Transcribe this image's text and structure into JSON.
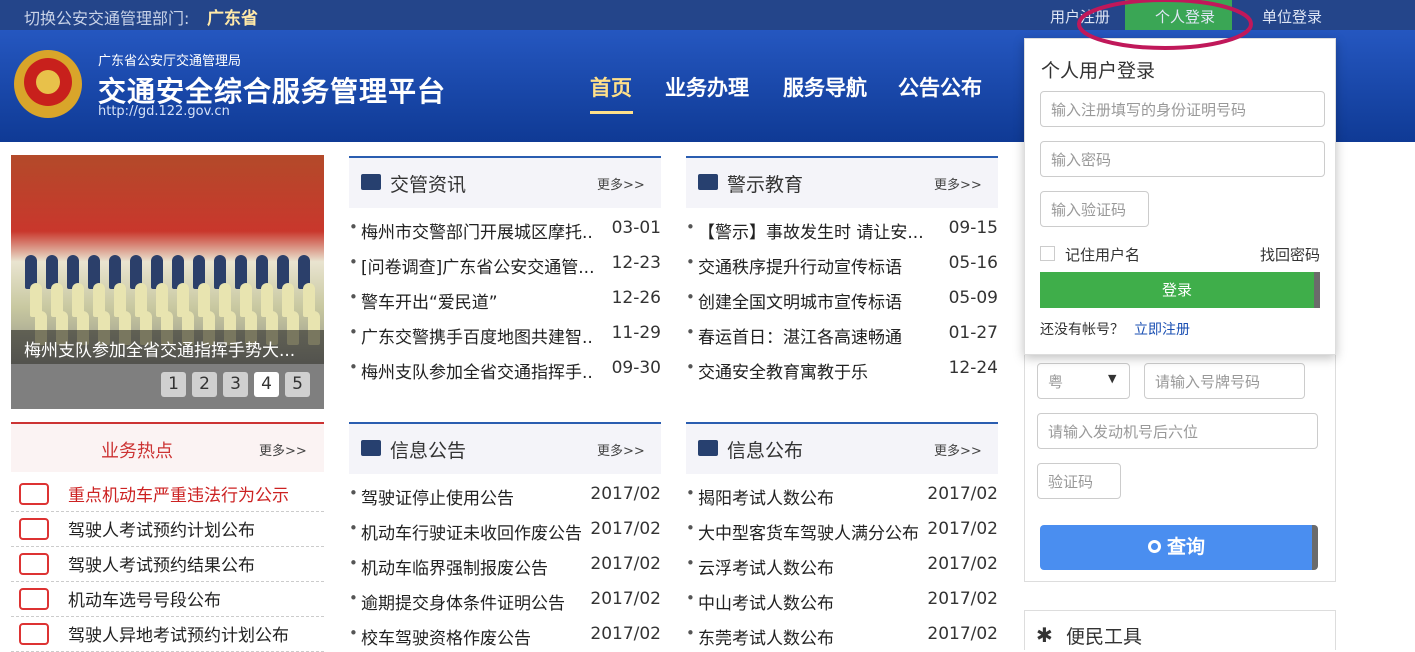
{
  "topbar": {
    "switch_label": "切换公安交通管理部门:",
    "province": "广东省",
    "links": [
      "用户注册",
      "个人登录",
      "单位登录"
    ]
  },
  "header": {
    "org": "广东省公安厅交通管理局",
    "title": "交通安全综合服务管理平台",
    "url": "http://gd.122.gov.cn",
    "nav": [
      "首页",
      "业务办理",
      "服务导航",
      "公告公布"
    ]
  },
  "carousel": {
    "caption": "梅州支队参加全省交通指挥手势大...",
    "pages": [
      "1",
      "2",
      "3",
      "4",
      "5"
    ]
  },
  "hot": {
    "title": "业务热点",
    "more": "更多>>",
    "items": [
      "重点机动车严重违法行为公示",
      "驾驶人考试预约计划公布",
      "驾驶人考试预约结果公布",
      "机动车选号号段公布",
      "驾驶人异地考试预约计划公布"
    ]
  },
  "panels": [
    {
      "title": "交管资讯",
      "more": "更多>>",
      "items": [
        {
          "text": "梅州市交警部门开展城区摩托..",
          "date": "03-01"
        },
        {
          "text": "[问卷调查]广东省公安交通管...",
          "date": "12-23"
        },
        {
          "text": "警车开出“爱民道”",
          "date": "12-26"
        },
        {
          "text": "广东交警携手百度地图共建智..",
          "date": "11-29"
        },
        {
          "text": "梅州支队参加全省交通指挥手..",
          "date": "09-30"
        }
      ]
    },
    {
      "title": "警示教育",
      "more": "更多>>",
      "items": [
        {
          "text": "【警示】事故发生时 请让安...",
          "date": "09-15"
        },
        {
          "text": "交通秩序提升行动宣传标语",
          "date": "05-16"
        },
        {
          "text": "创建全国文明城市宣传标语",
          "date": "05-09"
        },
        {
          "text": "春运首日：湛江各高速畅通",
          "date": "01-27"
        },
        {
          "text": "交通安全教育寓教于乐",
          "date": "12-24"
        }
      ]
    },
    {
      "title": "信息公告",
      "more": "更多>>",
      "items": [
        {
          "text": "驾驶证停止使用公告",
          "date": "2017/02"
        },
        {
          "text": "机动车行驶证未收回作废公告",
          "date": "2017/02"
        },
        {
          "text": "机动车临界强制报废公告",
          "date": "2017/02"
        },
        {
          "text": "逾期提交身体条件证明公告",
          "date": "2017/02"
        },
        {
          "text": "校车驾驶资格作废公告",
          "date": "2017/02"
        }
      ]
    },
    {
      "title": "信息公布",
      "more": "更多>>",
      "items": [
        {
          "text": "揭阳考试人数公布",
          "date": "2017/02"
        },
        {
          "text": "大中型客货车驾驶人满分公布",
          "date": "2017/02"
        },
        {
          "text": "云浮考试人数公布",
          "date": "2017/02"
        },
        {
          "text": "中山考试人数公布",
          "date": "2017/02"
        },
        {
          "text": "东莞考试人数公布",
          "date": "2017/02"
        }
      ]
    }
  ],
  "login": {
    "title": "个人用户登录",
    "id_placeholder": "输入注册填写的身份证明号码",
    "password_placeholder": "输入密码",
    "captcha_placeholder": "输入验证码",
    "remember": "记住用户名",
    "forgot": "找回密码",
    "submit": "登录",
    "no_account": "还没有帐号？",
    "register": "立即注册"
  },
  "query": {
    "province": "粤",
    "plate_placeholder": "请输入号牌号码",
    "engine_placeholder": "请输入发动机号后六位",
    "captcha_placeholder": "验证码",
    "submit": "查询"
  },
  "tools": {
    "title": "便民工具"
  }
}
